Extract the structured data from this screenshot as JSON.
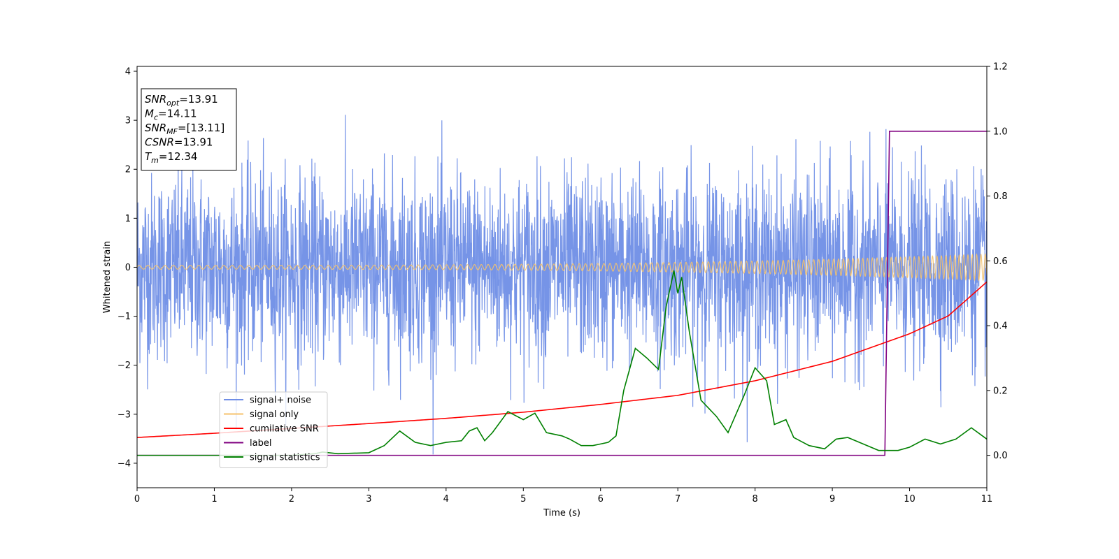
{
  "chart_data": {
    "type": "line",
    "title": "",
    "xlabel": "Time (s)",
    "ylabel": "Whitened strain",
    "y2label": "",
    "xlim": [
      0,
      11
    ],
    "ylim": [
      -4.5,
      4.1
    ],
    "y2lim": [
      -0.1,
      1.2
    ],
    "xticks": [
      0,
      1,
      2,
      3,
      4,
      5,
      6,
      7,
      8,
      9,
      10,
      11
    ],
    "yticks": [
      -4,
      -3,
      -2,
      -1,
      0,
      1,
      2,
      3,
      4
    ],
    "y2ticks": [
      0.0,
      0.2,
      0.4,
      0.6,
      0.8,
      1.0,
      1.2
    ],
    "y2tick_labels": [
      "0.0",
      "0.2",
      "0.4",
      "0.6",
      "0.8",
      "1.0",
      "1.2"
    ],
    "grid": false,
    "legend_position": "lower-left",
    "info_box": {
      "lines": [
        {
          "sym": "SNR",
          "sub": "opt",
          "value": "=13.91"
        },
        {
          "sym": "M",
          "sub": "c",
          "value": "=14.11"
        },
        {
          "sym": "SNR",
          "sub": "MF",
          "value": "=[13.11]"
        },
        {
          "sym": "CSNR",
          "sub": "",
          "value": "=13.91"
        },
        {
          "sym": "T",
          "sub": "m",
          "value": "=12.34"
        }
      ]
    },
    "series": [
      {
        "name": "signal+ noise",
        "color": "#6f8ee6",
        "axis": "left",
        "kind": "noise",
        "description_stats": {
          "std": 0.95,
          "min": -4.15,
          "max": 3.72
        }
      },
      {
        "name": "signal only",
        "color": "#f5c26b",
        "axis": "left",
        "kind": "chirp",
        "amplitude_start": 0.04,
        "amplitude_end": 0.27,
        "freq_start": 9,
        "freq_end": 18
      },
      {
        "name": "cumilative SNR",
        "color": "#ff0000",
        "axis": "right",
        "points": [
          [
            0,
            0.055
          ],
          [
            1,
            0.068
          ],
          [
            2,
            0.083
          ],
          [
            3,
            0.098
          ],
          [
            4,
            0.114
          ],
          [
            5,
            0.133
          ],
          [
            6,
            0.157
          ],
          [
            7,
            0.185
          ],
          [
            8,
            0.23
          ],
          [
            9,
            0.29
          ],
          [
            10,
            0.375
          ],
          [
            10.5,
            0.43
          ],
          [
            11,
            0.535
          ]
        ]
      },
      {
        "name": "label",
        "color": "#800080",
        "axis": "right",
        "points": [
          [
            0,
            0.0
          ],
          [
            9.68,
            0.0
          ],
          [
            9.74,
            1.0
          ],
          [
            11,
            1.0
          ]
        ]
      },
      {
        "name": "signal statistics",
        "color": "#008000",
        "axis": "right",
        "points": [
          [
            0,
            0.0
          ],
          [
            1,
            0.0
          ],
          [
            2,
            0.0
          ],
          [
            2.3,
            0.005
          ],
          [
            2.4,
            0.01
          ],
          [
            2.6,
            0.005
          ],
          [
            3,
            0.008
          ],
          [
            3.2,
            0.03
          ],
          [
            3.4,
            0.075
          ],
          [
            3.6,
            0.04
          ],
          [
            3.8,
            0.03
          ],
          [
            4.0,
            0.04
          ],
          [
            4.2,
            0.045
          ],
          [
            4.3,
            0.075
          ],
          [
            4.4,
            0.085
          ],
          [
            4.5,
            0.045
          ],
          [
            4.6,
            0.07
          ],
          [
            4.8,
            0.135
          ],
          [
            5.0,
            0.11
          ],
          [
            5.15,
            0.13
          ],
          [
            5.3,
            0.07
          ],
          [
            5.5,
            0.06
          ],
          [
            5.6,
            0.05
          ],
          [
            5.75,
            0.03
          ],
          [
            5.9,
            0.03
          ],
          [
            6.0,
            0.035
          ],
          [
            6.1,
            0.04
          ],
          [
            6.2,
            0.06
          ],
          [
            6.3,
            0.2
          ],
          [
            6.45,
            0.33
          ],
          [
            6.6,
            0.3
          ],
          [
            6.75,
            0.265
          ],
          [
            6.85,
            0.46
          ],
          [
            6.95,
            0.57
          ],
          [
            7.0,
            0.5
          ],
          [
            7.05,
            0.55
          ],
          [
            7.15,
            0.38
          ],
          [
            7.3,
            0.17
          ],
          [
            7.5,
            0.12
          ],
          [
            7.65,
            0.07
          ],
          [
            7.85,
            0.18
          ],
          [
            8.0,
            0.27
          ],
          [
            8.15,
            0.23
          ],
          [
            8.25,
            0.095
          ],
          [
            8.4,
            0.11
          ],
          [
            8.5,
            0.055
          ],
          [
            8.7,
            0.03
          ],
          [
            8.9,
            0.02
          ],
          [
            9.05,
            0.05
          ],
          [
            9.2,
            0.055
          ],
          [
            9.4,
            0.035
          ],
          [
            9.6,
            0.015
          ],
          [
            9.85,
            0.015
          ],
          [
            10.0,
            0.025
          ],
          [
            10.2,
            0.05
          ],
          [
            10.4,
            0.035
          ],
          [
            10.6,
            0.05
          ],
          [
            10.8,
            0.085
          ],
          [
            11,
            0.05
          ]
        ]
      }
    ]
  }
}
